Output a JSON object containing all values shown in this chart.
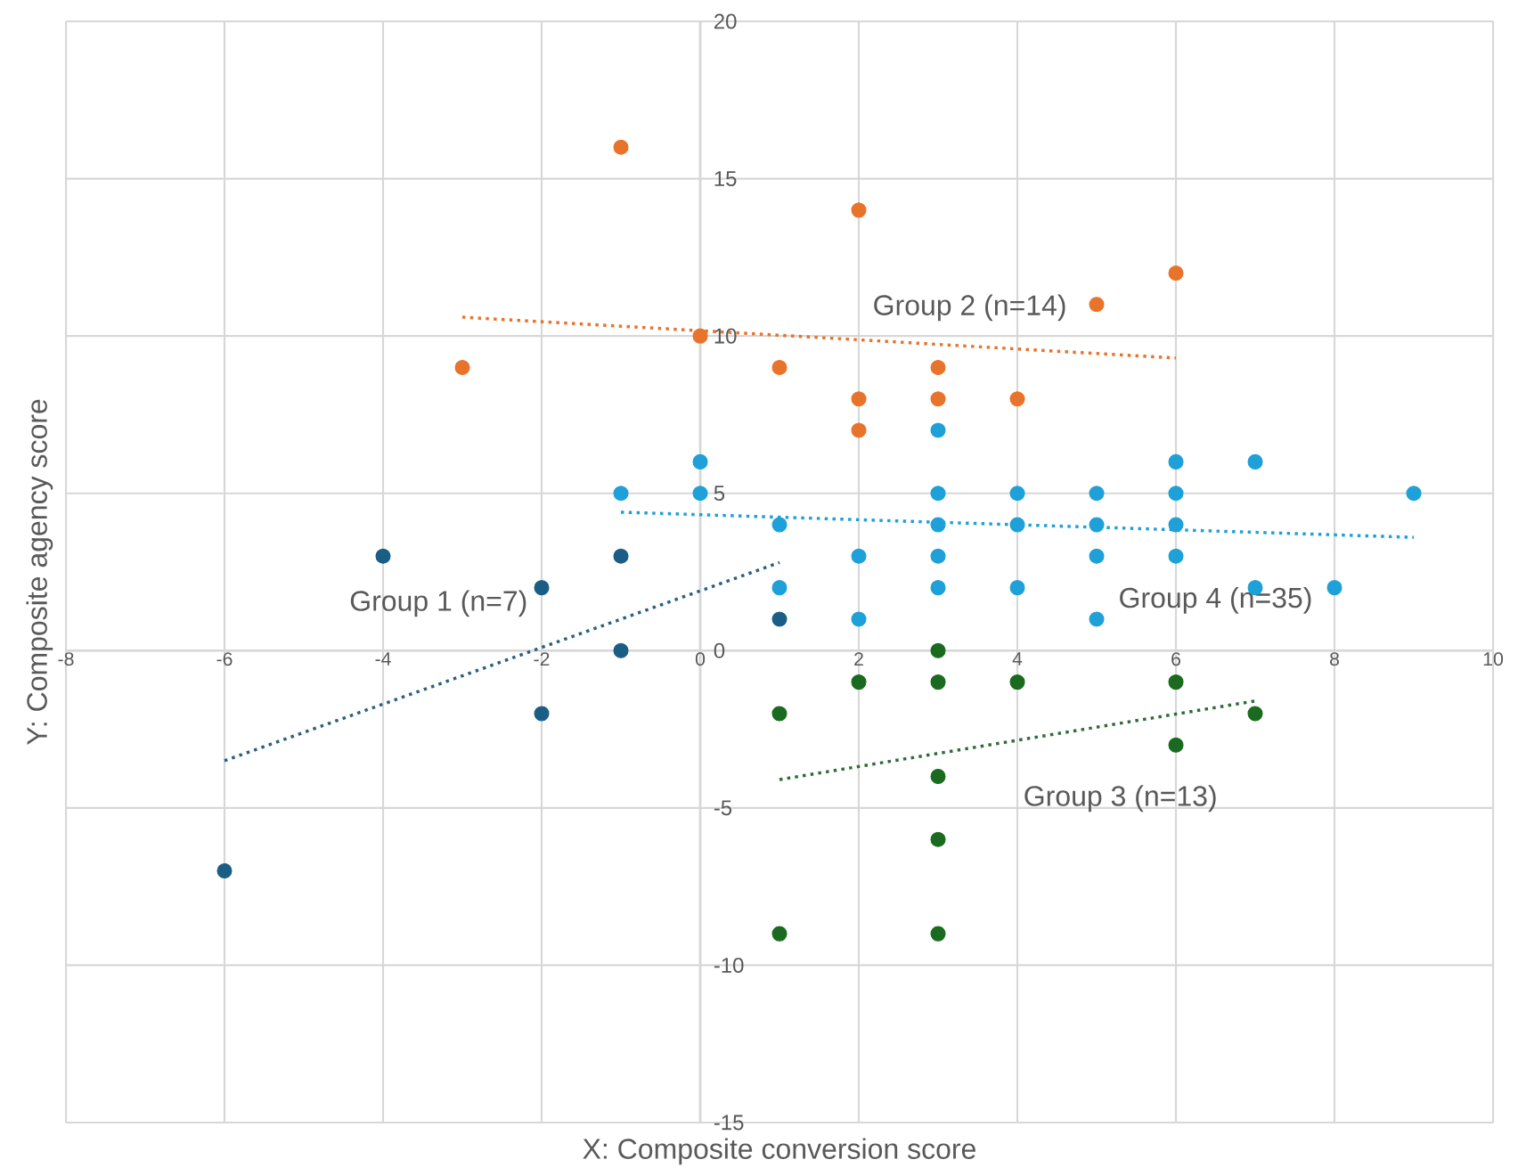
{
  "chart_data": {
    "type": "scatter",
    "xlabel": "X: Composite conversion score",
    "ylabel": "Y: Composite agency score",
    "xlim": [
      -8,
      10
    ],
    "ylim": [
      -15,
      20
    ],
    "xticks": [
      -8,
      -6,
      -4,
      -2,
      0,
      2,
      4,
      6,
      8,
      10
    ],
    "yticks": [
      -15,
      -10,
      -5,
      0,
      5,
      10,
      15,
      20
    ],
    "grid": true,
    "marker": "circle",
    "series": [
      {
        "name": "Group 1 (n=7)",
        "color": "#1b5e85",
        "x": [
          -6,
          -4,
          -2,
          -2,
          -1,
          -1,
          1
        ],
        "values": [
          -7,
          3,
          2,
          -2,
          3,
          0,
          1
        ]
      },
      {
        "name": "Group 2 (n=14)",
        "color": "#e8732b",
        "x": [
          -3,
          -1,
          0,
          1,
          2,
          2,
          2,
          3,
          3,
          4,
          5,
          6
        ],
        "values": [
          9,
          16,
          10,
          9,
          14,
          8,
          7,
          9,
          8,
          8,
          11,
          12
        ]
      },
      {
        "name": "Group 3 (n=13)",
        "color": "#1a6b1f",
        "x": [
          1,
          1,
          2,
          3,
          3,
          3,
          3,
          3,
          4,
          6,
          6,
          7
        ],
        "values": [
          -2,
          -9,
          -1,
          0,
          -1,
          -4,
          -6,
          -9,
          -1,
          -1,
          -3,
          -2
        ]
      },
      {
        "name": "Group 4 (n=35)",
        "color": "#1ea0d8",
        "x": [
          -1,
          0,
          0,
          1,
          1,
          2,
          2,
          3,
          3,
          3,
          3,
          3,
          4,
          4,
          4,
          5,
          5,
          5,
          5,
          6,
          6,
          6,
          6,
          7,
          7,
          8,
          9
        ],
        "values": [
          5,
          6,
          5,
          4,
          2,
          3,
          1,
          7,
          5,
          4,
          3,
          2,
          5,
          4,
          2,
          5,
          4,
          3,
          1,
          6,
          5,
          4,
          3,
          6,
          2,
          2,
          5
        ]
      },
      {
        "type": "line",
        "color": "#2a5f7f",
        "line_style": "dotted",
        "marker": "none",
        "x": [
          -6,
          1
        ],
        "values": [
          -3.5,
          2.8
        ]
      },
      {
        "type": "line",
        "color": "#e8732b",
        "line_style": "dotted",
        "marker": "none",
        "x": [
          -3,
          6
        ],
        "values": [
          10.6,
          9.3
        ]
      },
      {
        "type": "line",
        "color": "#2e6b3a",
        "line_style": "dotted",
        "marker": "none",
        "x": [
          1,
          7
        ],
        "values": [
          -4.1,
          -1.6
        ]
      },
      {
        "type": "line",
        "color": "#1ea0d8",
        "line_style": "dotted",
        "marker": "none",
        "x": [
          -1,
          9
        ],
        "values": [
          4.4,
          3.6
        ]
      }
    ]
  }
}
